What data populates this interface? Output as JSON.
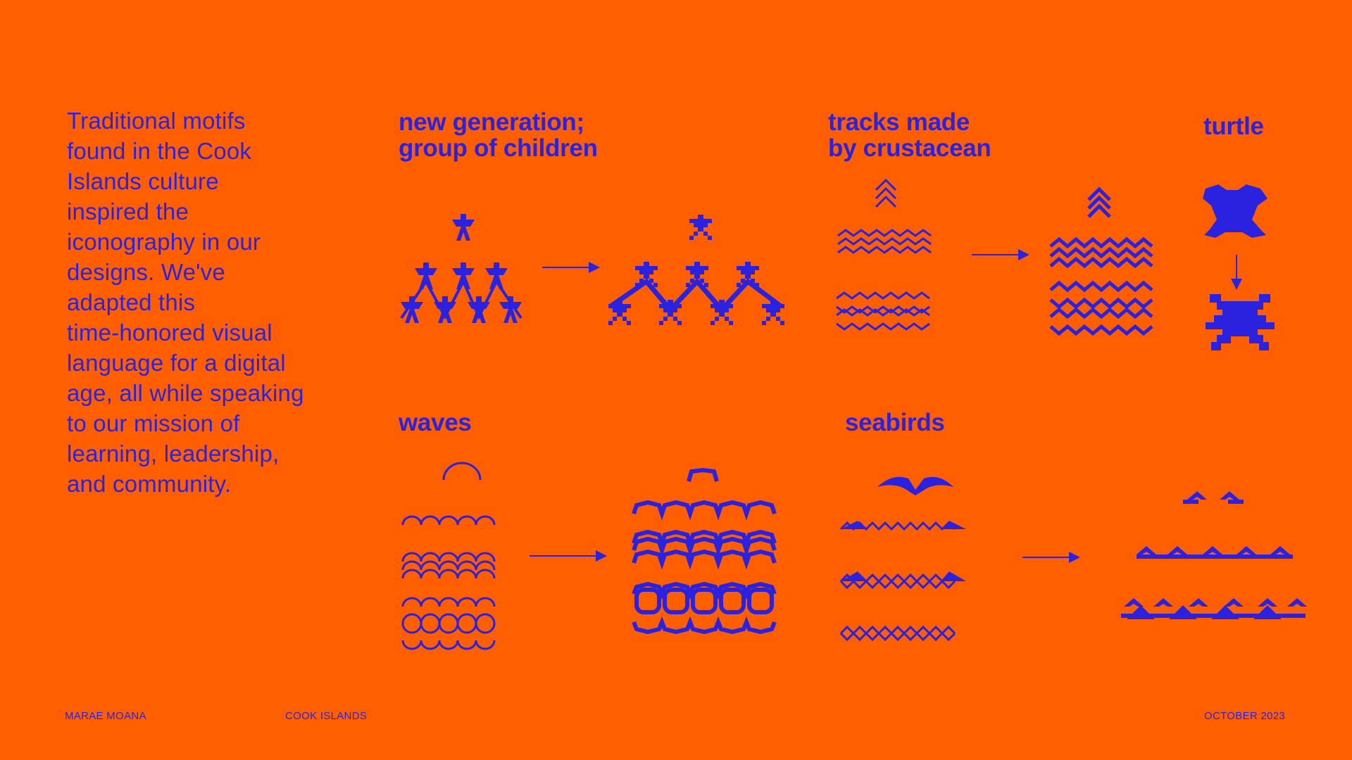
{
  "intro_text": "Traditional motifs\nfound in the Cook\nIslands culture\ninspired the\niconography in our\ndesigns.  We've\nadapted this\ntime-honored visual\nlanguage for a digital\nage, all while speaking\nto our mission of\nlearning, leadership,\nand community.",
  "motifs": {
    "children": "new generation;\ngroup of children",
    "crustacean": "tracks made\nby crustacean",
    "turtle": "turtle",
    "waves": "waves",
    "seabirds": "seabirds"
  },
  "footer": {
    "left": "MARAE MOANA",
    "center": "COOK ISLANDS",
    "right": "OCTOBER 2023"
  },
  "colors": {
    "background": "#FF5F00",
    "ink": "#2B22E0"
  }
}
